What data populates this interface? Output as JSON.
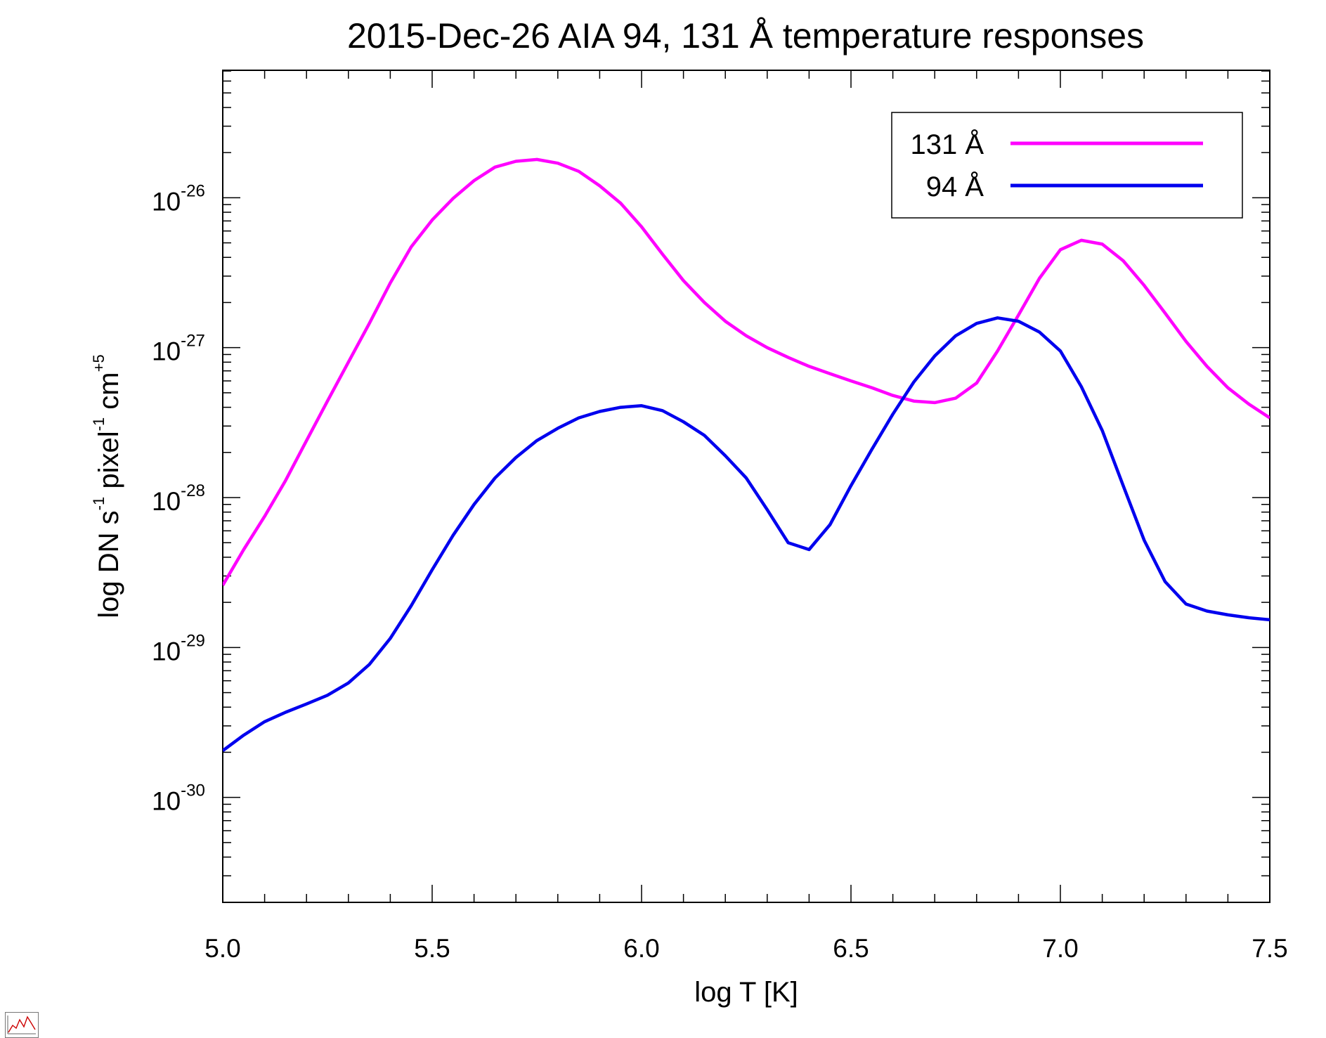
{
  "chart_data": {
    "type": "line",
    "title": "2015-Dec-26 AIA 94, 131 Å temperature responses",
    "xlabel": "log T [K]",
    "ylabel": {
      "main": "log DN s",
      "exp1": "-1",
      "mid": " pixel",
      "exp2": "-1",
      "mid2": " cm",
      "exp3": "+5"
    },
    "xlim": [
      5.0,
      7.5
    ],
    "ylim_log10": [
      -30.7,
      -25.15
    ],
    "y_scale": "log",
    "x_ticks": [
      {
        "v": 5.0,
        "label": "5.0"
      },
      {
        "v": 5.5,
        "label": "5.5"
      },
      {
        "v": 6.0,
        "label": "6.0"
      },
      {
        "v": 6.5,
        "label": "6.5"
      },
      {
        "v": 7.0,
        "label": "7.0"
      },
      {
        "v": 7.5,
        "label": "7.5"
      }
    ],
    "y_ticks": [
      {
        "exp": -26,
        "base": "10",
        "sup": "-26"
      },
      {
        "exp": -27,
        "base": "10",
        "sup": "-27"
      },
      {
        "exp": -28,
        "base": "10",
        "sup": "-28"
      },
      {
        "exp": -29,
        "base": "10",
        "sup": "-29"
      },
      {
        "exp": -30,
        "base": "10",
        "sup": "-30"
      }
    ],
    "legend": {
      "placement": "top-right"
    },
    "series": [
      {
        "name": "131 Å",
        "color": "#ff00ff",
        "x": [
          5.0,
          5.05,
          5.1,
          5.15,
          5.2,
          5.25,
          5.3,
          5.35,
          5.4,
          5.45,
          5.5,
          5.55,
          5.6,
          5.65,
          5.7,
          5.75,
          5.8,
          5.85,
          5.9,
          5.95,
          6.0,
          6.05,
          6.1,
          6.15,
          6.2,
          6.25,
          6.3,
          6.35,
          6.4,
          6.45,
          6.5,
          6.55,
          6.6,
          6.65,
          6.7,
          6.75,
          6.8,
          6.85,
          6.9,
          6.95,
          7.0,
          7.05,
          7.1,
          7.15,
          7.2,
          7.25,
          7.3,
          7.35,
          7.4,
          7.45,
          7.5
        ],
        "y": [
          2.6e-29,
          4.5e-29,
          7.5e-29,
          1.3e-28,
          2.4e-28,
          4.4e-28,
          8e-28,
          1.45e-27,
          2.7e-27,
          4.7e-27,
          7.1e-27,
          9.9e-27,
          1.3e-26,
          1.6e-26,
          1.75e-26,
          1.8e-26,
          1.7e-26,
          1.5e-26,
          1.2e-26,
          9.2e-27,
          6.4e-27,
          4.2e-27,
          2.8e-27,
          2e-27,
          1.5e-27,
          1.2e-27,
          1e-27,
          8.6e-28,
          7.5e-28,
          6.7e-28,
          6e-28,
          5.4e-28,
          4.8e-28,
          4.4e-28,
          4.3e-28,
          4.6e-28,
          5.8e-28,
          9.5e-28,
          1.65e-27,
          2.9e-27,
          4.5e-27,
          5.2e-27,
          4.9e-27,
          3.8e-27,
          2.6e-27,
          1.7e-27,
          1.1e-27,
          7.5e-28,
          5.4e-28,
          4.2e-28,
          3.4e-28
        ]
      },
      {
        "name": "94 Å",
        "color": "#0000ee",
        "x": [
          5.0,
          5.05,
          5.1,
          5.15,
          5.2,
          5.25,
          5.3,
          5.35,
          5.4,
          5.45,
          5.5,
          5.55,
          5.6,
          5.65,
          5.7,
          5.75,
          5.8,
          5.85,
          5.9,
          5.95,
          6.0,
          6.05,
          6.1,
          6.15,
          6.2,
          6.25,
          6.3,
          6.35,
          6.4,
          6.45,
          6.5,
          6.55,
          6.6,
          6.65,
          6.7,
          6.75,
          6.8,
          6.85,
          6.9,
          6.95,
          7.0,
          7.05,
          7.1,
          7.15,
          7.2,
          7.25,
          7.3,
          7.35,
          7.4,
          7.45,
          7.5
        ],
        "y": [
          2.05e-30,
          2.6e-30,
          3.2e-30,
          3.7e-30,
          4.2e-30,
          4.8e-30,
          5.8e-30,
          7.7e-30,
          1.15e-29,
          1.9e-29,
          3.3e-29,
          5.6e-29,
          9e-29,
          1.35e-28,
          1.85e-28,
          2.4e-28,
          2.9e-28,
          3.4e-28,
          3.75e-28,
          4e-28,
          4.1e-28,
          3.8e-28,
          3.2e-28,
          2.6e-28,
          1.9e-28,
          1.35e-28,
          8.3e-29,
          5e-29,
          4.5e-29,
          6.6e-29,
          1.2e-28,
          2.1e-28,
          3.6e-28,
          5.9e-28,
          8.8e-28,
          1.2e-27,
          1.45e-27,
          1.58e-27,
          1.5e-27,
          1.27e-27,
          9.5e-28,
          5.5e-28,
          2.8e-28,
          1.2e-28,
          5.2e-29,
          2.75e-29,
          1.95e-29,
          1.75e-29,
          1.65e-29,
          1.58e-29,
          1.53e-29
        ]
      }
    ]
  }
}
